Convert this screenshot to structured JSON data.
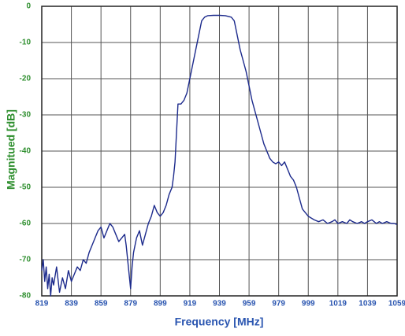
{
  "chart_data": {
    "type": "line",
    "xlabel": "Frequency [MHz]",
    "ylabel": "Magnitued [dB]",
    "x": [
      819,
      820,
      821,
      822,
      823,
      824,
      825,
      826,
      827,
      829,
      831,
      833,
      835,
      837,
      839,
      841,
      843,
      845,
      847,
      849,
      851,
      853,
      855,
      857,
      859,
      861,
      863,
      865,
      867,
      869,
      871,
      873,
      875,
      876,
      877,
      878,
      879,
      880,
      881,
      883,
      885,
      887,
      889,
      891,
      893,
      895,
      897,
      899,
      901,
      903,
      905,
      907,
      908,
      909,
      910,
      911,
      913,
      915,
      917,
      919,
      921,
      923,
      925,
      927,
      929,
      931,
      935,
      939,
      943,
      947,
      949,
      951,
      953,
      955,
      957,
      959,
      961,
      963,
      965,
      967,
      969,
      971,
      973,
      975,
      977,
      979,
      981,
      983,
      985,
      987,
      989,
      991,
      993,
      995,
      997,
      999,
      1001,
      1003,
      1006,
      1009,
      1012,
      1015,
      1017,
      1019,
      1022,
      1025,
      1027,
      1029,
      1032,
      1035,
      1037,
      1039,
      1042,
      1045,
      1047,
      1049,
      1052,
      1055,
      1057,
      1059
    ],
    "values": [
      -73,
      -70,
      -76,
      -72,
      -78,
      -74,
      -80,
      -75,
      -77,
      -72,
      -79,
      -75,
      -78,
      -73,
      -76,
      -74,
      -72,
      -73,
      -70,
      -71,
      -68,
      -66,
      -64,
      -62,
      -61,
      -64,
      -62,
      -60,
      -61,
      -63,
      -65,
      -64,
      -63,
      -66,
      -70,
      -74,
      -78,
      -72,
      -68,
      -64,
      -62,
      -66,
      -63,
      -60,
      -58,
      -55,
      -57,
      -58,
      -57,
      -55,
      -52,
      -50,
      -47,
      -43,
      -35,
      -27,
      -27,
      -26,
      -24,
      -20,
      -16,
      -12,
      -8,
      -4,
      -3,
      -2.6,
      -2.5,
      -2.5,
      -2.6,
      -3,
      -4,
      -8,
      -12,
      -15,
      -18,
      -22,
      -26,
      -29,
      -32,
      -35,
      -38,
      -40,
      -42,
      -43,
      -43.5,
      -43,
      -44,
      -43,
      -45,
      -47,
      -48,
      -50,
      -53,
      -56,
      -57,
      -58,
      -58.5,
      -59,
      -59.5,
      -59,
      -60,
      -59.5,
      -59,
      -60,
      -59.5,
      -60,
      -59,
      -59.5,
      -60,
      -59.5,
      -60,
      -59.5,
      -59,
      -60,
      -59.5,
      -60,
      -59.5,
      -60,
      -60,
      -60.3
    ],
    "color": "#1c2a8c",
    "xlim": [
      819,
      1059
    ],
    "ylim": [
      -80,
      0
    ],
    "xticks": [
      819,
      839,
      859,
      879,
      899,
      919,
      939,
      959,
      979,
      999,
      1019,
      1039,
      1059
    ],
    "yticks": [
      0,
      -10,
      -20,
      -30,
      -40,
      -50,
      -60,
      -70,
      -80
    ],
    "grid": true,
    "xaxis_color": "#2a55b0",
    "yaxis_color": "#2f8f2f"
  }
}
